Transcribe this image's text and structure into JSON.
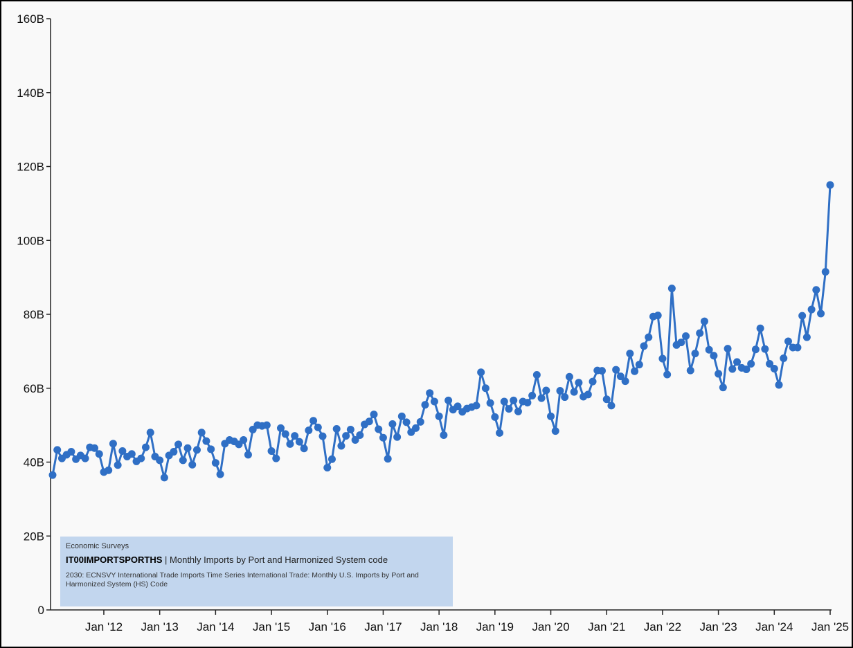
{
  "chart_data": {
    "type": "line",
    "x": [
      "2011-02",
      "2011-03",
      "2011-04",
      "2011-05",
      "2011-06",
      "2011-07",
      "2011-08",
      "2011-09",
      "2011-10",
      "2011-11",
      "2011-12",
      "2012-01",
      "2012-02",
      "2012-03",
      "2012-04",
      "2012-05",
      "2012-06",
      "2012-07",
      "2012-08",
      "2012-09",
      "2012-10",
      "2012-11",
      "2012-12",
      "2013-01",
      "2013-02",
      "2013-03",
      "2013-04",
      "2013-05",
      "2013-06",
      "2013-07",
      "2013-08",
      "2013-09",
      "2013-10",
      "2013-11",
      "2013-12",
      "2014-01",
      "2014-02",
      "2014-03",
      "2014-04",
      "2014-05",
      "2014-06",
      "2014-07",
      "2014-08",
      "2014-09",
      "2014-10",
      "2014-11",
      "2014-12",
      "2015-01",
      "2015-02",
      "2015-03",
      "2015-04",
      "2015-05",
      "2015-06",
      "2015-07",
      "2015-08",
      "2015-09",
      "2015-10",
      "2015-11",
      "2015-12",
      "2016-01",
      "2016-02",
      "2016-03",
      "2016-04",
      "2016-05",
      "2016-06",
      "2016-07",
      "2016-08",
      "2016-09",
      "2016-10",
      "2016-11",
      "2016-12",
      "2017-01",
      "2017-02",
      "2017-03",
      "2017-04",
      "2017-05",
      "2017-06",
      "2017-07",
      "2017-08",
      "2017-09",
      "2017-10",
      "2017-11",
      "2017-12",
      "2018-01",
      "2018-02",
      "2018-03",
      "2018-04",
      "2018-05",
      "2018-06",
      "2018-07",
      "2018-08",
      "2018-09",
      "2018-10",
      "2018-11",
      "2018-12",
      "2019-01",
      "2019-02",
      "2019-03",
      "2019-04",
      "2019-05",
      "2019-06",
      "2019-07",
      "2019-08",
      "2019-09",
      "2019-10",
      "2019-11",
      "2019-12",
      "2020-01",
      "2020-02",
      "2020-03",
      "2020-04",
      "2020-05",
      "2020-06",
      "2020-07",
      "2020-08",
      "2020-09",
      "2020-10",
      "2020-11",
      "2020-12",
      "2021-01",
      "2021-02",
      "2021-03",
      "2021-04",
      "2021-05",
      "2021-06",
      "2021-07",
      "2021-08",
      "2021-09",
      "2021-10",
      "2021-11",
      "2021-12",
      "2022-01",
      "2022-02",
      "2022-03",
      "2022-04",
      "2022-05",
      "2022-06",
      "2022-07",
      "2022-08",
      "2022-09",
      "2022-10",
      "2022-11",
      "2022-12",
      "2023-01",
      "2023-02",
      "2023-03",
      "2023-04",
      "2023-05",
      "2023-06",
      "2023-07",
      "2023-08",
      "2023-09",
      "2023-10",
      "2023-11",
      "2023-12",
      "2024-01",
      "2024-02",
      "2024-03",
      "2024-04",
      "2024-05",
      "2024-06",
      "2024-07",
      "2024-08",
      "2024-09",
      "2024-10",
      "2024-11",
      "2024-12",
      "2025-01"
    ],
    "series": [
      {
        "color": "#2f6fc5",
        "values": [
          36.5,
          43.3,
          41,
          42,
          42.8,
          40.8,
          41.8,
          41,
          44,
          43.8,
          42.2,
          37.3,
          37.8,
          45,
          39.2,
          43,
          41.5,
          42.2,
          40.2,
          41,
          44,
          48,
          41.5,
          40.5,
          35.8,
          41.8,
          42.8,
          44.8,
          40.5,
          43.8,
          39.3,
          43.3,
          48,
          45.7,
          43.5,
          39.8,
          36.7,
          45,
          46,
          45.6,
          44.8,
          46,
          42,
          48.8,
          50,
          49.8,
          50,
          43,
          41,
          49.2,
          47.6,
          44.9,
          47.1,
          45.5,
          43.7,
          48.6,
          51.2,
          49.4,
          47,
          38.5,
          40.8,
          49,
          44.4,
          47.1,
          48.8,
          46,
          47.3,
          50.2,
          51,
          52.9,
          48.9,
          46.6,
          40.9,
          50.3,
          46.8,
          52.4,
          50.8,
          48.1,
          49.2,
          50.9,
          55.5,
          58.7,
          56.4,
          52.4,
          47.3,
          56.7,
          54.2,
          55.1,
          53.6,
          54.5,
          54.9,
          55.3,
          64.3,
          60,
          56,
          52.2,
          47.9,
          56.4,
          54.4,
          56.7,
          53.7,
          56.4,
          56.1,
          58,
          63.6,
          57.3,
          59.4,
          52.4,
          48.4,
          59.3,
          57.6,
          63.1,
          59,
          61.5,
          57.7,
          58.3,
          61.8,
          64.8,
          64.7,
          57,
          55.3,
          65,
          63.2,
          61.9,
          69.4,
          64.6,
          66.4,
          71.4,
          73.8,
          79.4,
          79.7,
          68,
          63.7,
          87,
          71.7,
          72.4,
          74.1,
          64.8,
          69.4,
          74.9,
          78.1,
          70.4,
          68.8,
          63.9,
          60.2,
          70.7,
          65.2,
          67.1,
          65.5,
          65.1,
          66.6,
          70.5,
          76.2,
          70.6,
          66.6,
          65.3,
          60.9,
          68.1,
          72.7,
          71,
          71,
          79.6,
          73.8,
          81.3,
          86.6,
          80.2,
          91.5,
          115
        ]
      }
    ],
    "xlim": [
      "2011-02",
      "2025-01"
    ],
    "xticks": [
      {
        "value": "2012-01",
        "label": "Jan '12"
      },
      {
        "value": "2013-01",
        "label": "Jan '13"
      },
      {
        "value": "2014-01",
        "label": "Jan '14"
      },
      {
        "value": "2015-01",
        "label": "Jan '15"
      },
      {
        "value": "2016-01",
        "label": "Jan '16"
      },
      {
        "value": "2017-01",
        "label": "Jan '17"
      },
      {
        "value": "2018-01",
        "label": "Jan '18"
      },
      {
        "value": "2019-01",
        "label": "Jan '19"
      },
      {
        "value": "2020-01",
        "label": "Jan '20"
      },
      {
        "value": "2021-01",
        "label": "Jan '21"
      },
      {
        "value": "2022-01",
        "label": "Jan '22"
      },
      {
        "value": "2023-01",
        "label": "Jan '23"
      },
      {
        "value": "2024-01",
        "label": "Jan '24"
      },
      {
        "value": "2025-01",
        "label": "Jan '25"
      }
    ],
    "ylim": [
      0,
      160
    ],
    "yticks": [
      0,
      {
        "value": 20,
        "label": "20B"
      },
      {
        "value": 40,
        "label": "40B"
      },
      {
        "value": 60,
        "label": "60B"
      },
      {
        "value": 80,
        "label": "80B"
      },
      {
        "value": 100,
        "label": "100B"
      },
      {
        "value": 120,
        "label": "120B"
      },
      {
        "value": 140,
        "label": "140B"
      },
      {
        "value": 160,
        "label": "160B"
      }
    ],
    "source": {
      "category": "Economic Surveys",
      "code": "IT00IMPORTSPORTHS",
      "name": "Monthly Imports by Port and Harmonized System code",
      "description": "2030: ECNSVY International Trade Imports Time Series International Trade: Monthly U.S. Imports by Port and Harmonized System (HS) Code"
    }
  }
}
